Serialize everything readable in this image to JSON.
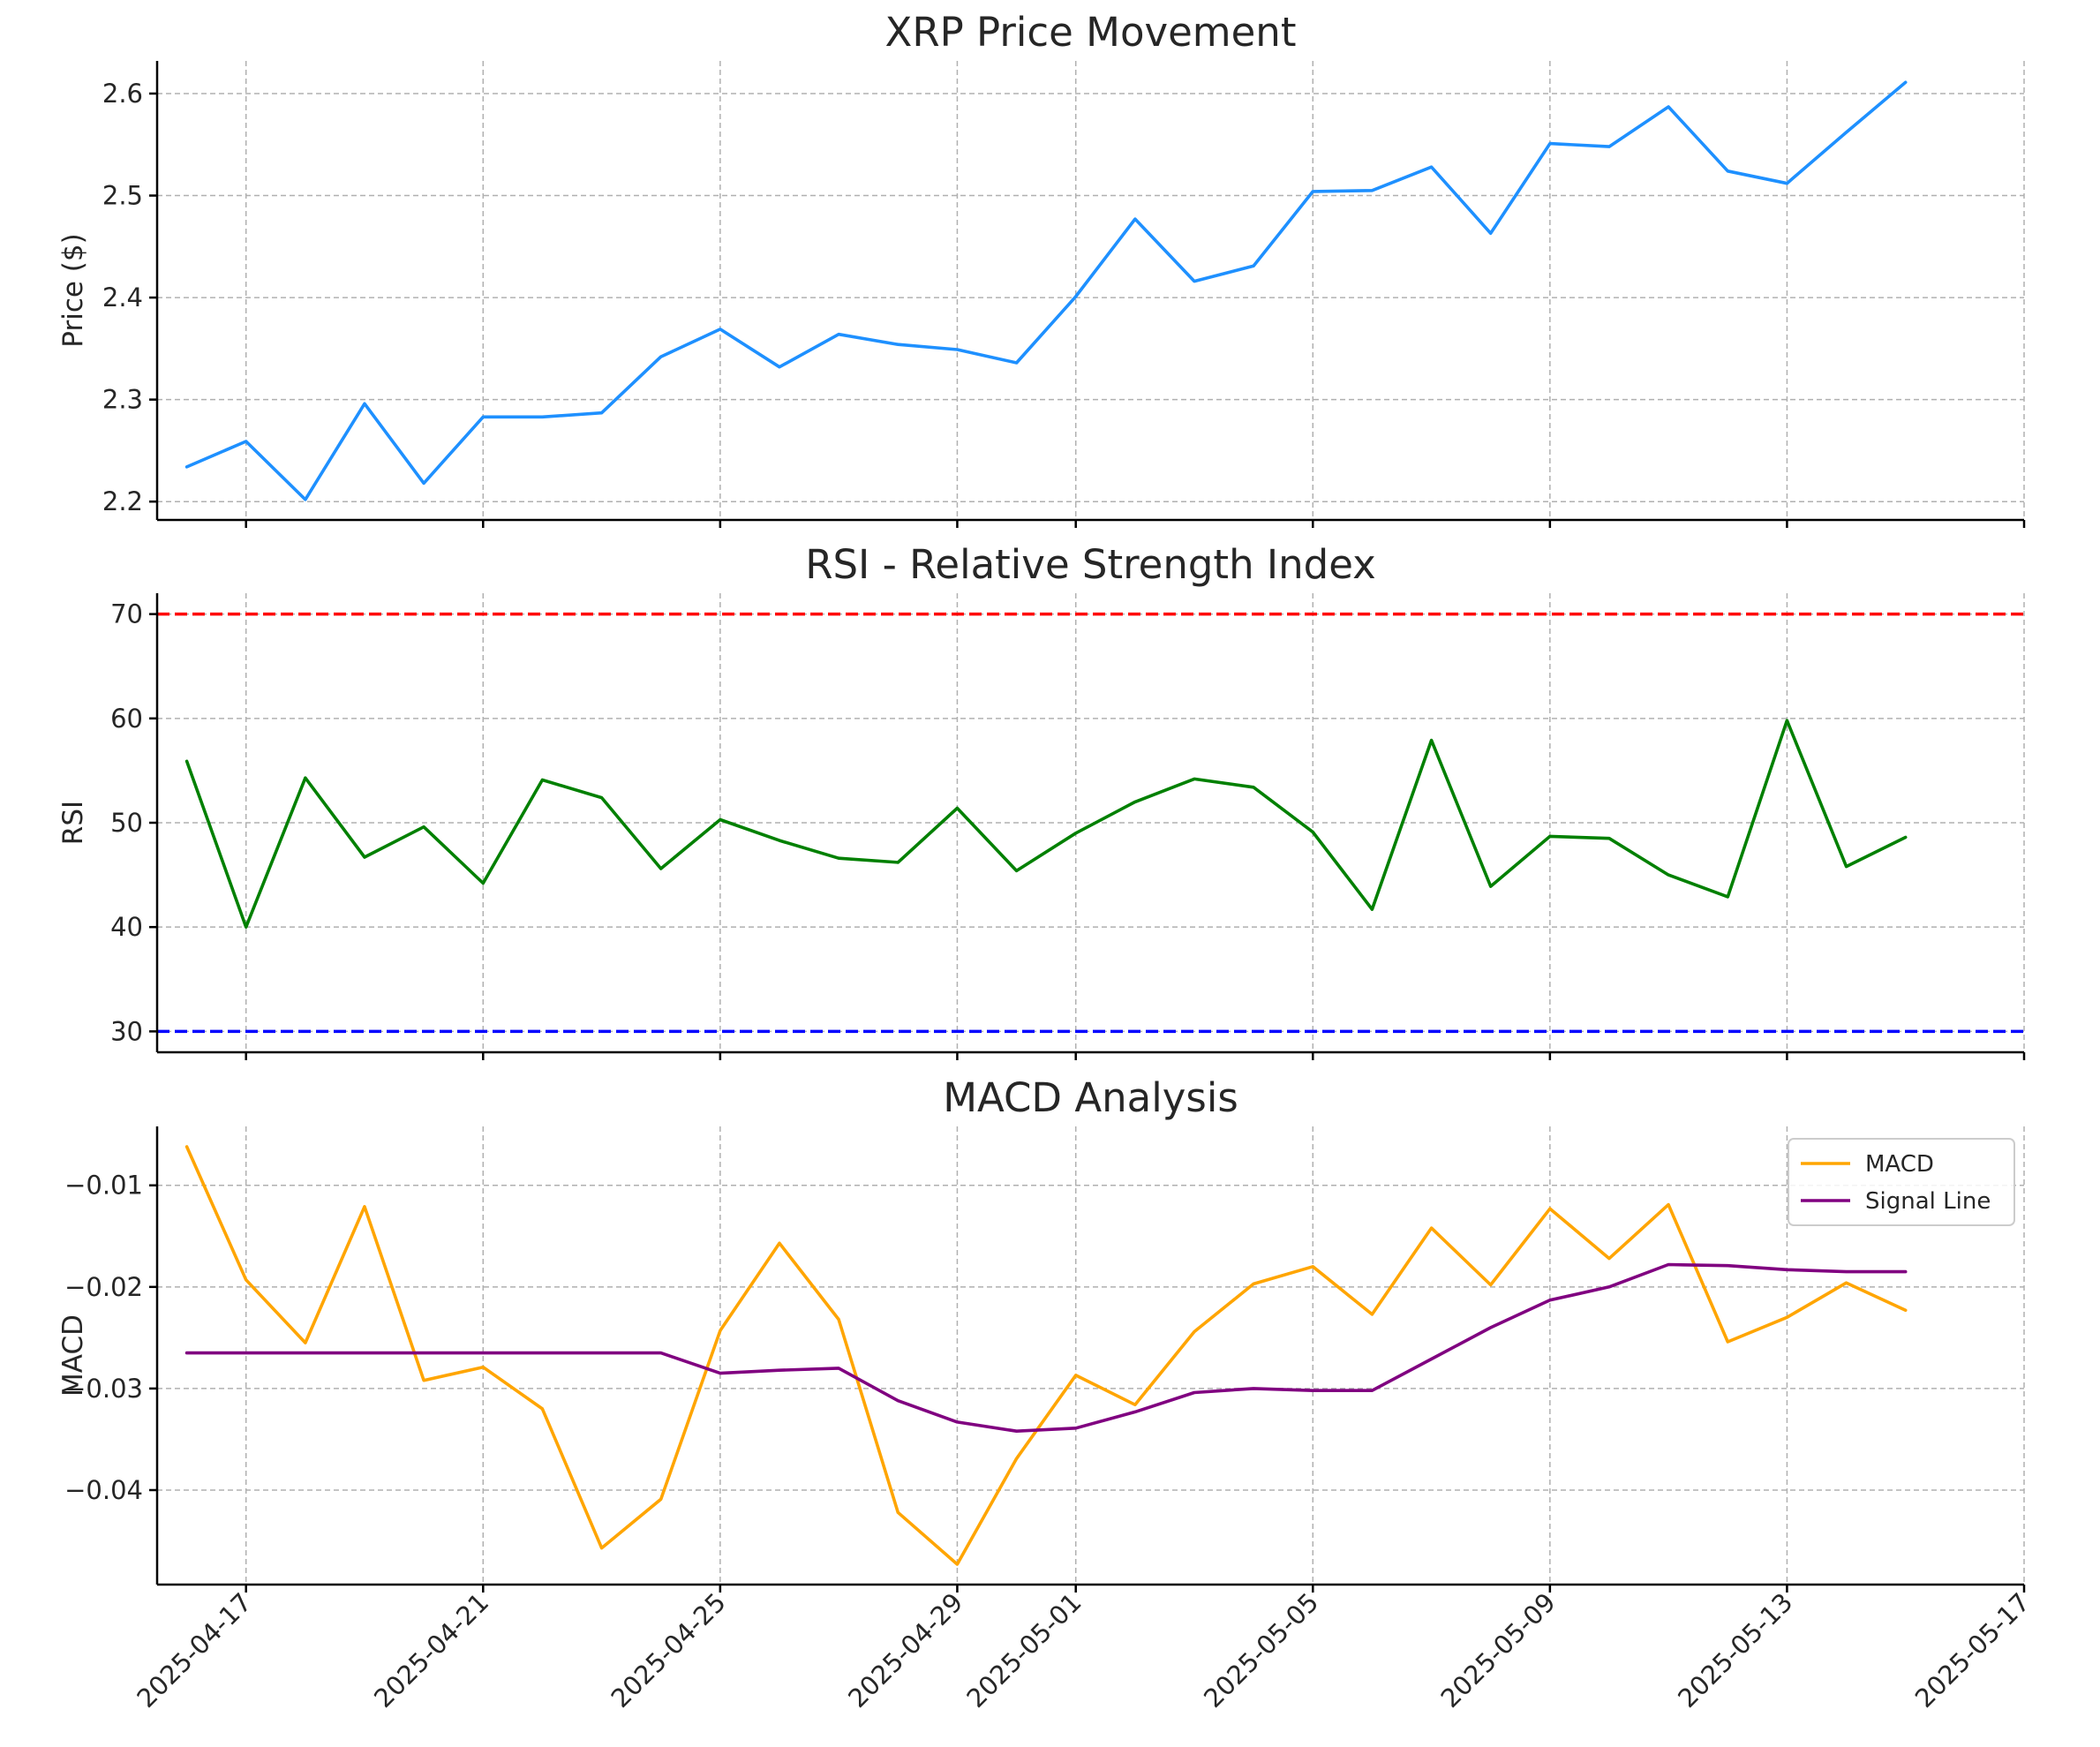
{
  "chart_data": [
    {
      "type": "line",
      "title": "XRP Price Movement",
      "ylabel": "Price ($)",
      "xlabel": "",
      "x": [
        "2025-04-16",
        "2025-04-17",
        "2025-04-18",
        "2025-04-19",
        "2025-04-20",
        "2025-04-21",
        "2025-04-22",
        "2025-04-23",
        "2025-04-24",
        "2025-04-25",
        "2025-04-26",
        "2025-04-27",
        "2025-04-28",
        "2025-04-29",
        "2025-04-30",
        "2025-05-01",
        "2025-05-02",
        "2025-05-03",
        "2025-05-04",
        "2025-05-05",
        "2025-05-06",
        "2025-05-07",
        "2025-05-08",
        "2025-05-09",
        "2025-05-10",
        "2025-05-11",
        "2025-05-12",
        "2025-05-13",
        "2025-05-14",
        "2025-05-15"
      ],
      "series": [
        {
          "name": "Price",
          "color": "#1e90ff",
          "values": [
            2.234,
            2.259,
            2.202,
            2.296,
            2.218,
            2.283,
            2.283,
            2.287,
            2.342,
            2.369,
            2.332,
            2.364,
            2.354,
            2.349,
            2.336,
            2.401,
            2.477,
            2.416,
            2.431,
            2.504,
            2.505,
            2.528,
            2.463,
            2.551,
            2.548,
            2.587,
            2.524,
            2.512,
            2.562,
            2.611
          ]
        }
      ],
      "ylim": [
        2.182,
        2.632
      ],
      "yticks": [
        2.2,
        2.3,
        2.4,
        2.5,
        2.6
      ],
      "ytick_labels": [
        "2.2",
        "2.3",
        "2.4",
        "2.5",
        "2.6"
      ],
      "grid": true,
      "reference_lines": []
    },
    {
      "type": "line",
      "title": "RSI - Relative Strength Index",
      "ylabel": "RSI",
      "xlabel": "",
      "x": [
        "2025-04-16",
        "2025-04-17",
        "2025-04-18",
        "2025-04-19",
        "2025-04-20",
        "2025-04-21",
        "2025-04-22",
        "2025-04-23",
        "2025-04-24",
        "2025-04-25",
        "2025-04-26",
        "2025-04-27",
        "2025-04-28",
        "2025-04-29",
        "2025-04-30",
        "2025-05-01",
        "2025-05-02",
        "2025-05-03",
        "2025-05-04",
        "2025-05-05",
        "2025-05-06",
        "2025-05-07",
        "2025-05-08",
        "2025-05-09",
        "2025-05-10",
        "2025-05-11",
        "2025-05-12",
        "2025-05-13",
        "2025-05-14",
        "2025-05-15"
      ],
      "series": [
        {
          "name": "RSI",
          "color": "#008000",
          "values": [
            55.9,
            40.0,
            54.3,
            46.7,
            49.6,
            44.2,
            54.1,
            52.4,
            45.6,
            50.3,
            48.3,
            46.6,
            46.2,
            51.4,
            45.4,
            49.0,
            52.0,
            54.2,
            53.4,
            49.1,
            41.7,
            57.9,
            43.9,
            48.7,
            48.5,
            45.0,
            42.9,
            59.8,
            45.8,
            48.6
          ]
        }
      ],
      "ylim": [
        28.0,
        72.0
      ],
      "yticks": [
        30,
        40,
        50,
        60,
        70
      ],
      "ytick_labels": [
        "30",
        "40",
        "50",
        "60",
        "70"
      ],
      "grid": true,
      "reference_lines": [
        {
          "value": 70,
          "color": "#ff0000",
          "style": "dashed"
        },
        {
          "value": 30,
          "color": "#0000ff",
          "style": "dashed"
        }
      ]
    },
    {
      "type": "line",
      "title": "MACD Analysis",
      "ylabel": "MACD",
      "xlabel": "",
      "x": [
        "2025-04-16",
        "2025-04-17",
        "2025-04-18",
        "2025-04-19",
        "2025-04-20",
        "2025-04-21",
        "2025-04-22",
        "2025-04-23",
        "2025-04-24",
        "2025-04-25",
        "2025-04-26",
        "2025-04-27",
        "2025-04-28",
        "2025-04-29",
        "2025-04-30",
        "2025-05-01",
        "2025-05-02",
        "2025-05-03",
        "2025-05-04",
        "2025-05-05",
        "2025-05-06",
        "2025-05-07",
        "2025-05-08",
        "2025-05-09",
        "2025-05-10",
        "2025-05-11",
        "2025-05-12",
        "2025-05-13",
        "2025-05-14",
        "2025-05-15"
      ],
      "series": [
        {
          "name": "MACD",
          "color": "#ffa500",
          "values": [
            -0.0062,
            -0.0193,
            -0.0255,
            -0.0121,
            -0.0292,
            -0.0279,
            -0.032,
            -0.0457,
            -0.0409,
            -0.0243,
            -0.0157,
            -0.0232,
            -0.0422,
            -0.0473,
            -0.0369,
            -0.0287,
            -0.0316,
            -0.0244,
            -0.0197,
            -0.018,
            -0.0227,
            -0.0142,
            -0.0198,
            -0.0123,
            -0.0172,
            -0.0119,
            -0.0254,
            -0.023,
            -0.0196,
            -0.0223
          ]
        },
        {
          "name": "Signal Line",
          "color": "#800080",
          "values": [
            -0.0265,
            -0.0265,
            -0.0265,
            -0.0265,
            -0.0265,
            -0.0265,
            -0.0265,
            -0.0265,
            -0.0265,
            -0.0285,
            -0.0282,
            -0.028,
            -0.0312,
            -0.0333,
            -0.0342,
            -0.0339,
            -0.0323,
            -0.0304,
            -0.03,
            -0.0302,
            -0.0302,
            -0.0271,
            -0.024,
            -0.0213,
            -0.02,
            -0.0178,
            -0.0179,
            -0.0183,
            -0.0185,
            -0.0185
          ]
        }
      ],
      "ylim": [
        -0.0493,
        -0.0042
      ],
      "yticks": [
        -0.04,
        -0.03,
        -0.02,
        -0.01
      ],
      "ytick_labels": [
        "−0.04",
        "−0.03",
        "−0.02",
        "−0.01"
      ],
      "grid": true,
      "reference_lines": [],
      "legend": {
        "placement": "top-right",
        "entries": [
          "MACD",
          "Signal Line"
        ]
      }
    }
  ],
  "shared_x_axis": {
    "xlim": [
      "2025-04-15T12:00",
      "2025-05-17"
    ],
    "ticks": [
      "2025-04-17",
      "2025-04-21",
      "2025-04-25",
      "2025-04-29",
      "2025-05-01",
      "2025-05-05",
      "2025-05-09",
      "2025-05-13",
      "2025-05-17"
    ],
    "tick_labels": [
      "2025-04-17",
      "2025-04-21",
      "2025-04-25",
      "2025-04-29",
      "2025-05-01",
      "2025-05-05",
      "2025-05-09",
      "2025-05-13",
      "2025-05-17"
    ],
    "tick_rotation_deg": 45
  }
}
